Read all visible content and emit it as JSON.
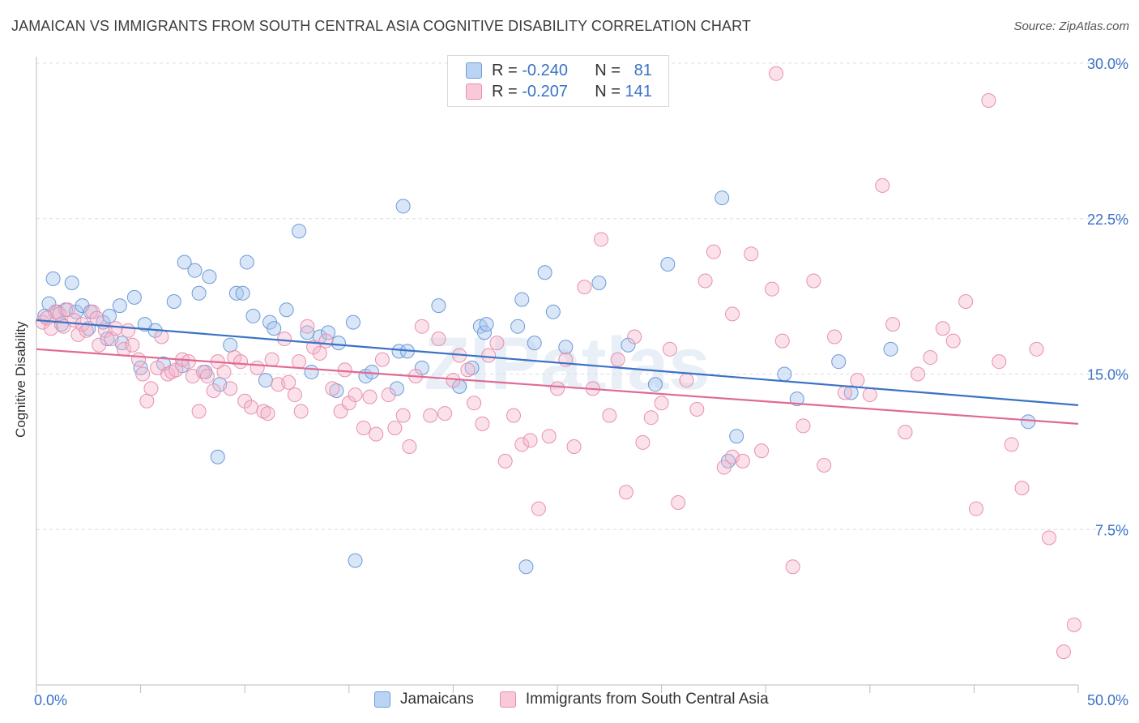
{
  "title": "JAMAICAN VS IMMIGRANTS FROM SOUTH CENTRAL ASIA COGNITIVE DISABILITY CORRELATION CHART",
  "source": "Source: ZipAtlas.com",
  "watermark": "ZIPatlas",
  "legend": {
    "r_label": "R =",
    "n_label": "N =",
    "series": [
      {
        "name": "Jamaicans",
        "r": "-0.240",
        "n": "81",
        "fill": "#aac8ef",
        "stroke": "#5d8fd6"
      },
      {
        "name": "Immigrants from South Central Asia",
        "r": "-0.207",
        "n": "141",
        "fill": "#f5b7cb",
        "stroke": "#e57ea0"
      }
    ]
  },
  "chart_data": {
    "type": "scatter",
    "title": "JAMAICAN VS IMMIGRANTS FROM SOUTH CENTRAL ASIA COGNITIVE DISABILITY CORRELATION CHART",
    "xlabel": "",
    "ylabel": "Cognitive Disability",
    "xlim": [
      0,
      50
    ],
    "ylim": [
      0,
      30
    ],
    "x_tick_labels": [
      "0.0%",
      "50.0%"
    ],
    "y_ticks": [
      7.5,
      15.0,
      22.5,
      30.0
    ],
    "y_tick_labels": [
      "7.5%",
      "15.0%",
      "22.5%",
      "30.0%"
    ],
    "grid": true,
    "series": [
      {
        "name": "Jamaicans",
        "color": "#3a72c6",
        "trend": {
          "x": [
            0,
            50
          ],
          "y": [
            17.6,
            13.5
          ]
        },
        "points": [
          [
            0.4,
            17.8
          ],
          [
            0.6,
            18.4
          ],
          [
            0.8,
            19.6
          ],
          [
            1.0,
            18.0
          ],
          [
            1.2,
            17.4
          ],
          [
            1.4,
            18.1
          ],
          [
            1.7,
            19.4
          ],
          [
            1.9,
            18.0
          ],
          [
            2.2,
            18.3
          ],
          [
            2.5,
            17.2
          ],
          [
            2.6,
            18.0
          ],
          [
            3.2,
            17.5
          ],
          [
            3.4,
            16.7
          ],
          [
            3.5,
            17.8
          ],
          [
            4.0,
            18.3
          ],
          [
            4.1,
            16.5
          ],
          [
            4.7,
            18.7
          ],
          [
            5.0,
            15.3
          ],
          [
            5.2,
            17.4
          ],
          [
            5.7,
            17.1
          ],
          [
            6.1,
            15.5
          ],
          [
            6.6,
            18.5
          ],
          [
            7.0,
            15.4
          ],
          [
            7.1,
            20.4
          ],
          [
            7.6,
            20.0
          ],
          [
            7.8,
            18.9
          ],
          [
            8.1,
            15.1
          ],
          [
            8.3,
            19.7
          ],
          [
            8.7,
            11.0
          ],
          [
            8.8,
            14.5
          ],
          [
            9.3,
            16.4
          ],
          [
            9.6,
            18.9
          ],
          [
            9.9,
            18.9
          ],
          [
            10.1,
            20.4
          ],
          [
            10.4,
            17.8
          ],
          [
            11.0,
            14.7
          ],
          [
            11.2,
            17.5
          ],
          [
            11.4,
            17.2
          ],
          [
            12.0,
            18.1
          ],
          [
            12.6,
            21.9
          ],
          [
            13.0,
            17.0
          ],
          [
            13.2,
            15.1
          ],
          [
            13.6,
            16.8
          ],
          [
            14.0,
            17.0
          ],
          [
            14.4,
            14.2
          ],
          [
            14.5,
            16.5
          ],
          [
            15.2,
            17.5
          ],
          [
            15.3,
            6.0
          ],
          [
            15.8,
            14.9
          ],
          [
            16.1,
            15.1
          ],
          [
            17.3,
            14.3
          ],
          [
            17.4,
            16.1
          ],
          [
            17.6,
            23.1
          ],
          [
            17.8,
            16.1
          ],
          [
            18.5,
            15.3
          ],
          [
            19.3,
            18.3
          ],
          [
            20.3,
            14.4
          ],
          [
            20.9,
            15.3
          ],
          [
            21.3,
            17.3
          ],
          [
            21.5,
            17.0
          ],
          [
            21.6,
            17.4
          ],
          [
            23.1,
            17.3
          ],
          [
            23.3,
            18.6
          ],
          [
            23.5,
            5.7
          ],
          [
            23.9,
            16.5
          ],
          [
            24.4,
            19.9
          ],
          [
            24.8,
            18.0
          ],
          [
            25.4,
            16.3
          ],
          [
            27.0,
            19.4
          ],
          [
            28.4,
            16.4
          ],
          [
            29.7,
            14.5
          ],
          [
            30.3,
            20.3
          ],
          [
            32.9,
            23.5
          ],
          [
            33.2,
            10.8
          ],
          [
            33.6,
            12.0
          ],
          [
            35.9,
            15.0
          ],
          [
            36.5,
            13.8
          ],
          [
            38.5,
            15.6
          ],
          [
            39.1,
            14.1
          ],
          [
            41.0,
            16.2
          ],
          [
            47.6,
            12.7
          ]
        ]
      },
      {
        "name": "Immigrants from South Central Asia",
        "color": "#e06a92",
        "trend": {
          "x": [
            0,
            50
          ],
          "y": [
            16.2,
            12.6
          ]
        },
        "points": [
          [
            0.3,
            17.5
          ],
          [
            0.5,
            17.7
          ],
          [
            0.7,
            17.2
          ],
          [
            0.9,
            18.0
          ],
          [
            1.1,
            17.9
          ],
          [
            1.3,
            17.3
          ],
          [
            1.5,
            18.1
          ],
          [
            1.8,
            17.6
          ],
          [
            2.0,
            16.9
          ],
          [
            2.2,
            17.4
          ],
          [
            2.4,
            17.1
          ],
          [
            2.7,
            18.0
          ],
          [
            2.9,
            17.7
          ],
          [
            3.0,
            16.4
          ],
          [
            3.3,
            17.1
          ],
          [
            3.6,
            16.7
          ],
          [
            3.8,
            17.2
          ],
          [
            4.2,
            16.2
          ],
          [
            4.4,
            17.1
          ],
          [
            4.6,
            16.4
          ],
          [
            4.9,
            15.7
          ],
          [
            5.1,
            15.0
          ],
          [
            5.3,
            13.7
          ],
          [
            5.5,
            14.3
          ],
          [
            5.8,
            15.3
          ],
          [
            6.0,
            16.8
          ],
          [
            6.3,
            15.0
          ],
          [
            6.5,
            15.1
          ],
          [
            6.7,
            15.2
          ],
          [
            7.0,
            15.7
          ],
          [
            7.3,
            15.6
          ],
          [
            7.5,
            14.9
          ],
          [
            7.8,
            13.2
          ],
          [
            8.0,
            15.1
          ],
          [
            8.2,
            14.9
          ],
          [
            8.5,
            14.2
          ],
          [
            8.7,
            15.6
          ],
          [
            9.0,
            15.1
          ],
          [
            9.3,
            14.3
          ],
          [
            9.5,
            15.8
          ],
          [
            9.8,
            15.6
          ],
          [
            10.0,
            13.7
          ],
          [
            10.3,
            13.4
          ],
          [
            10.6,
            15.3
          ],
          [
            10.9,
            13.2
          ],
          [
            11.1,
            13.1
          ],
          [
            11.3,
            15.7
          ],
          [
            11.6,
            14.5
          ],
          [
            11.9,
            16.7
          ],
          [
            12.1,
            14.6
          ],
          [
            12.4,
            14.0
          ],
          [
            12.7,
            13.2
          ],
          [
            13.0,
            17.3
          ],
          [
            13.3,
            16.3
          ],
          [
            13.6,
            16.0
          ],
          [
            13.9,
            16.6
          ],
          [
            14.2,
            14.3
          ],
          [
            14.6,
            13.2
          ],
          [
            15.0,
            13.6
          ],
          [
            15.3,
            14.0
          ],
          [
            15.7,
            12.4
          ],
          [
            16.0,
            13.9
          ],
          [
            16.3,
            12.1
          ],
          [
            16.6,
            15.7
          ],
          [
            16.9,
            14.0
          ],
          [
            17.2,
            12.4
          ],
          [
            17.6,
            13.0
          ],
          [
            17.9,
            11.5
          ],
          [
            18.2,
            14.9
          ],
          [
            18.5,
            17.3
          ],
          [
            18.9,
            13.0
          ],
          [
            19.3,
            16.7
          ],
          [
            19.6,
            13.1
          ],
          [
            20.0,
            14.7
          ],
          [
            20.3,
            15.9
          ],
          [
            20.7,
            15.2
          ],
          [
            21.0,
            13.6
          ],
          [
            21.4,
            12.6
          ],
          [
            21.7,
            15.9
          ],
          [
            22.1,
            16.5
          ],
          [
            22.5,
            10.8
          ],
          [
            22.9,
            13.0
          ],
          [
            23.3,
            11.6
          ],
          [
            23.7,
            11.8
          ],
          [
            24.1,
            8.5
          ],
          [
            24.6,
            12.0
          ],
          [
            25.0,
            14.3
          ],
          [
            25.4,
            15.7
          ],
          [
            25.8,
            11.5
          ],
          [
            26.3,
            19.2
          ],
          [
            26.7,
            14.3
          ],
          [
            27.1,
            21.5
          ],
          [
            27.5,
            13.0
          ],
          [
            27.9,
            15.7
          ],
          [
            28.3,
            9.3
          ],
          [
            28.7,
            16.8
          ],
          [
            29.1,
            11.7
          ],
          [
            29.5,
            12.9
          ],
          [
            30.0,
            13.6
          ],
          [
            30.4,
            16.2
          ],
          [
            30.8,
            8.8
          ],
          [
            31.2,
            14.7
          ],
          [
            31.7,
            13.3
          ],
          [
            32.1,
            19.5
          ],
          [
            32.5,
            20.9
          ],
          [
            33.0,
            10.5
          ],
          [
            33.4,
            11.0
          ],
          [
            33.9,
            10.8
          ],
          [
            34.3,
            20.8
          ],
          [
            34.8,
            11.3
          ],
          [
            35.3,
            19.1
          ],
          [
            35.8,
            16.6
          ],
          [
            36.3,
            5.7
          ],
          [
            36.8,
            12.5
          ],
          [
            37.3,
            19.5
          ],
          [
            37.8,
            10.6
          ],
          [
            38.3,
            16.8
          ],
          [
            38.8,
            14.1
          ],
          [
            39.4,
            14.7
          ],
          [
            40.0,
            14.0
          ],
          [
            40.6,
            24.1
          ],
          [
            41.1,
            17.4
          ],
          [
            41.7,
            12.2
          ],
          [
            42.3,
            15.0
          ],
          [
            42.9,
            15.8
          ],
          [
            43.5,
            17.2
          ],
          [
            44.0,
            16.6
          ],
          [
            44.6,
            18.5
          ],
          [
            45.1,
            8.5
          ],
          [
            45.7,
            28.2
          ],
          [
            46.2,
            15.6
          ],
          [
            46.8,
            11.6
          ],
          [
            47.3,
            9.5
          ],
          [
            48.0,
            16.2
          ],
          [
            48.6,
            7.1
          ],
          [
            49.3,
            1.6
          ],
          [
            49.8,
            2.9
          ],
          [
            33.4,
            17.9
          ],
          [
            35.5,
            29.5
          ],
          [
            12.6,
            15.6
          ],
          [
            14.8,
            15.2
          ]
        ]
      }
    ]
  }
}
